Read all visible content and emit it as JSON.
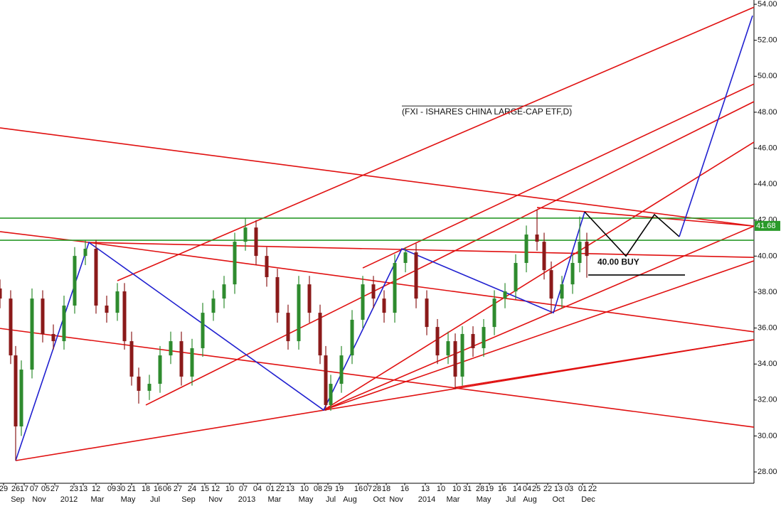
{
  "chart_data": {
    "type": "candlestick",
    "title": "(FXI - ISHARES CHINA LARGE-CAP ETF,D)",
    "up_color": "#2e8b2e",
    "down_color": "#8b1a1a",
    "xlim": [
      0,
      212
    ],
    "ylim": [
      27.37,
      54.24
    ],
    "yticks": [
      {
        "value": 28,
        "label": "28.00"
      },
      {
        "value": 30,
        "label": "30.00"
      },
      {
        "value": 32,
        "label": "32.00"
      },
      {
        "value": 34,
        "label": "34.00"
      },
      {
        "value": 36,
        "label": "36.00"
      },
      {
        "value": 38,
        "label": "38.00"
      },
      {
        "value": 40,
        "label": "40.00"
      },
      {
        "value": 42,
        "label": "42.00"
      },
      {
        "value": 44,
        "label": "44.00"
      },
      {
        "value": 46,
        "label": "46.00"
      },
      {
        "value": 48,
        "label": "48.00"
      },
      {
        "value": 50,
        "label": "50.00"
      },
      {
        "value": 52,
        "label": "52.00"
      },
      {
        "value": 54,
        "label": "54.00"
      }
    ],
    "xticks": [
      {
        "value": 1,
        "label": "29"
      },
      {
        "value": 4.4,
        "label": "26"
      },
      {
        "value": 6.8,
        "label": "17"
      },
      {
        "value": 9.6,
        "label": "07"
      },
      {
        "value": 12.8,
        "label": "05"
      },
      {
        "value": 15.4,
        "label": "27"
      },
      {
        "value": 20.8,
        "label": "23"
      },
      {
        "value": 23.4,
        "label": "13"
      },
      {
        "value": 27,
        "label": "12"
      },
      {
        "value": 31.4,
        "label": "09"
      },
      {
        "value": 34,
        "label": "30"
      },
      {
        "value": 37,
        "label": "21"
      },
      {
        "value": 41,
        "label": "18"
      },
      {
        "value": 44.4,
        "label": "16"
      },
      {
        "value": 47,
        "label": "06"
      },
      {
        "value": 50,
        "label": "27"
      },
      {
        "value": 54,
        "label": "24"
      },
      {
        "value": 57.6,
        "label": "15"
      },
      {
        "value": 60.6,
        "label": "12"
      },
      {
        "value": 64.6,
        "label": "10"
      },
      {
        "value": 68.4,
        "label": "07"
      },
      {
        "value": 72.4,
        "label": "04"
      },
      {
        "value": 76,
        "label": "01"
      },
      {
        "value": 78.8,
        "label": "22"
      },
      {
        "value": 81.6,
        "label": "13"
      },
      {
        "value": 85.6,
        "label": "10"
      },
      {
        "value": 89.4,
        "label": "08"
      },
      {
        "value": 92.2,
        "label": "29"
      },
      {
        "value": 95.4,
        "label": "19"
      },
      {
        "value": 100.8,
        "label": "16"
      },
      {
        "value": 103.4,
        "label": "07"
      },
      {
        "value": 106,
        "label": "28"
      },
      {
        "value": 108.6,
        "label": "18"
      },
      {
        "value": 113.8,
        "label": "16"
      },
      {
        "value": 119.6,
        "label": "13"
      },
      {
        "value": 124,
        "label": "10"
      },
      {
        "value": 128.4,
        "label": "10"
      },
      {
        "value": 131.4,
        "label": "31"
      },
      {
        "value": 135,
        "label": "28"
      },
      {
        "value": 137.6,
        "label": "19"
      },
      {
        "value": 141.2,
        "label": "16"
      },
      {
        "value": 145.4,
        "label": "14"
      },
      {
        "value": 148.2,
        "label": "04"
      },
      {
        "value": 150.8,
        "label": "25"
      },
      {
        "value": 154,
        "label": "22"
      },
      {
        "value": 157,
        "label": "13"
      },
      {
        "value": 160,
        "label": "03"
      },
      {
        "value": 163.8,
        "label": "01"
      },
      {
        "value": 166.6,
        "label": "22"
      }
    ],
    "x_month_labels": [
      {
        "value": 5,
        "label": "Sep"
      },
      {
        "value": 11,
        "label": "Nov"
      },
      {
        "value": 19.4,
        "label": "2012"
      },
      {
        "value": 27.4,
        "label": "Mar"
      },
      {
        "value": 36,
        "label": "May"
      },
      {
        "value": 43.6,
        "label": "Jul"
      },
      {
        "value": 53,
        "label": "Sep"
      },
      {
        "value": 60.6,
        "label": "Nov"
      },
      {
        "value": 69.4,
        "label": "2013"
      },
      {
        "value": 77.2,
        "label": "Mar"
      },
      {
        "value": 86,
        "label": "May"
      },
      {
        "value": 93,
        "label": "Jul"
      },
      {
        "value": 98.4,
        "label": "Aug"
      },
      {
        "value": 106.6,
        "label": "Oct"
      },
      {
        "value": 111.4,
        "label": "Nov"
      },
      {
        "value": 120,
        "label": "2014"
      },
      {
        "value": 127.4,
        "label": "Mar"
      },
      {
        "value": 136,
        "label": "May"
      },
      {
        "value": 143.6,
        "label": "Jul"
      },
      {
        "value": 149,
        "label": "Aug"
      },
      {
        "value": 157,
        "label": "Oct"
      },
      {
        "value": 165.4,
        "label": "Dec"
      }
    ],
    "candles": [
      {
        "x": 0,
        "open": 38.2,
        "high": 38.7,
        "low": 37.1,
        "close": 37.64
      },
      {
        "x": 3,
        "open": 37.64,
        "high": 38.1,
        "low": 34.0,
        "close": 34.48
      },
      {
        "x": 4.4,
        "open": 34.48,
        "high": 35.0,
        "low": 28.63,
        "close": 30.53
      },
      {
        "x": 6,
        "open": 30.53,
        "high": 34.2,
        "low": 30.0,
        "close": 33.69
      },
      {
        "x": 9,
        "open": 33.69,
        "high": 38.2,
        "low": 33.2,
        "close": 37.64
      },
      {
        "x": 12,
        "open": 37.64,
        "high": 38.1,
        "low": 35.2,
        "close": 35.67
      },
      {
        "x": 15,
        "open": 35.67,
        "high": 36.2,
        "low": 34.8,
        "close": 35.27
      },
      {
        "x": 18,
        "open": 35.27,
        "high": 37.8,
        "low": 34.8,
        "close": 37.25
      },
      {
        "x": 21,
        "open": 37.25,
        "high": 40.5,
        "low": 36.8,
        "close": 40.01
      },
      {
        "x": 24,
        "open": 40.01,
        "high": 40.9,
        "low": 39.5,
        "close": 40.41
      },
      {
        "x": 27,
        "open": 40.41,
        "high": 40.9,
        "low": 36.8,
        "close": 37.25
      },
      {
        "x": 30,
        "open": 37.25,
        "high": 37.8,
        "low": 36.3,
        "close": 36.85
      },
      {
        "x": 33,
        "open": 36.85,
        "high": 38.5,
        "low": 36.4,
        "close": 38.04
      },
      {
        "x": 35,
        "open": 38.04,
        "high": 38.5,
        "low": 34.8,
        "close": 35.27
      },
      {
        "x": 37,
        "open": 35.27,
        "high": 35.8,
        "low": 32.8,
        "close": 33.3
      },
      {
        "x": 39,
        "open": 33.3,
        "high": 33.8,
        "low": 31.8,
        "close": 32.51
      },
      {
        "x": 42,
        "open": 32.51,
        "high": 33.4,
        "low": 32.0,
        "close": 32.9
      },
      {
        "x": 45,
        "open": 32.9,
        "high": 35.0,
        "low": 32.4,
        "close": 34.48
      },
      {
        "x": 48,
        "open": 34.48,
        "high": 35.8,
        "low": 34.0,
        "close": 35.27
      },
      {
        "x": 51,
        "open": 35.27,
        "high": 35.8,
        "low": 32.8,
        "close": 33.3
      },
      {
        "x": 54,
        "open": 33.3,
        "high": 35.4,
        "low": 32.8,
        "close": 34.88
      },
      {
        "x": 57,
        "open": 34.88,
        "high": 37.4,
        "low": 34.4,
        "close": 36.85
      },
      {
        "x": 60,
        "open": 36.85,
        "high": 38.1,
        "low": 36.4,
        "close": 37.64
      },
      {
        "x": 63,
        "open": 37.64,
        "high": 38.9,
        "low": 37.1,
        "close": 38.43
      },
      {
        "x": 66,
        "open": 38.43,
        "high": 41.3,
        "low": 37.9,
        "close": 40.8
      },
      {
        "x": 69,
        "open": 40.8,
        "high": 42.1,
        "low": 40.3,
        "close": 41.59
      },
      {
        "x": 72,
        "open": 41.59,
        "high": 42.0,
        "low": 39.5,
        "close": 40.01
      },
      {
        "x": 75,
        "open": 40.01,
        "high": 40.5,
        "low": 38.3,
        "close": 38.83
      },
      {
        "x": 78,
        "open": 38.83,
        "high": 39.3,
        "low": 36.3,
        "close": 36.85
      },
      {
        "x": 81,
        "open": 36.85,
        "high": 37.3,
        "low": 34.8,
        "close": 35.27
      },
      {
        "x": 84,
        "open": 35.27,
        "high": 38.9,
        "low": 34.8,
        "close": 38.43
      },
      {
        "x": 87,
        "open": 38.43,
        "high": 38.9,
        "low": 36.3,
        "close": 36.85
      },
      {
        "x": 90,
        "open": 36.85,
        "high": 37.3,
        "low": 34.0,
        "close": 34.48
      },
      {
        "x": 91.6,
        "open": 34.48,
        "high": 35.0,
        "low": 31.4,
        "close": 31.72
      },
      {
        "x": 93,
        "open": 31.72,
        "high": 33.4,
        "low": 31.4,
        "close": 32.9
      },
      {
        "x": 96,
        "open": 32.9,
        "high": 35.0,
        "low": 32.4,
        "close": 34.48
      },
      {
        "x": 99,
        "open": 34.48,
        "high": 37.0,
        "low": 34.0,
        "close": 36.46
      },
      {
        "x": 102,
        "open": 36.46,
        "high": 38.9,
        "low": 36.0,
        "close": 38.43
      },
      {
        "x": 105,
        "open": 38.43,
        "high": 38.9,
        "low": 37.1,
        "close": 37.64
      },
      {
        "x": 108,
        "open": 37.64,
        "high": 38.1,
        "low": 36.3,
        "close": 36.85
      },
      {
        "x": 111,
        "open": 36.85,
        "high": 40.1,
        "low": 36.3,
        "close": 39.62
      },
      {
        "x": 114,
        "open": 39.62,
        "high": 40.5,
        "low": 39.1,
        "close": 40.21
      },
      {
        "x": 117,
        "open": 40.21,
        "high": 40.7,
        "low": 37.1,
        "close": 37.64
      },
      {
        "x": 120,
        "open": 37.64,
        "high": 38.1,
        "low": 35.6,
        "close": 36.06
      },
      {
        "x": 123,
        "open": 36.06,
        "high": 36.5,
        "low": 34.0,
        "close": 34.48
      },
      {
        "x": 126,
        "open": 34.48,
        "high": 35.8,
        "low": 34.0,
        "close": 35.27
      },
      {
        "x": 128,
        "open": 35.27,
        "high": 35.7,
        "low": 32.6,
        "close": 33.3
      },
      {
        "x": 130,
        "open": 33.3,
        "high": 36.1,
        "low": 32.8,
        "close": 35.67
      },
      {
        "x": 133,
        "open": 35.67,
        "high": 36.1,
        "low": 34.4,
        "close": 34.88
      },
      {
        "x": 136,
        "open": 34.88,
        "high": 36.5,
        "low": 34.4,
        "close": 36.06
      },
      {
        "x": 139,
        "open": 36.06,
        "high": 38.1,
        "low": 35.6,
        "close": 37.64
      },
      {
        "x": 142,
        "open": 37.64,
        "high": 38.5,
        "low": 37.1,
        "close": 38.04
      },
      {
        "x": 145,
        "open": 38.04,
        "high": 40.1,
        "low": 37.6,
        "close": 39.62
      },
      {
        "x": 148,
        "open": 39.62,
        "high": 41.7,
        "low": 39.1,
        "close": 41.2
      },
      {
        "x": 151,
        "open": 41.2,
        "high": 42.6,
        "low": 40.3,
        "close": 40.8
      },
      {
        "x": 153,
        "open": 40.8,
        "high": 41.3,
        "low": 38.7,
        "close": 39.22
      },
      {
        "x": 155,
        "open": 39.22,
        "high": 39.7,
        "low": 36.8,
        "close": 37.64
      },
      {
        "x": 158,
        "open": 37.64,
        "high": 38.9,
        "low": 37.1,
        "close": 38.43
      },
      {
        "x": 161,
        "open": 38.43,
        "high": 40.1,
        "low": 37.9,
        "close": 39.62
      },
      {
        "x": 163,
        "open": 39.62,
        "high": 42.2,
        "low": 39.1,
        "close": 40.8
      },
      {
        "x": 165,
        "open": 40.8,
        "high": 41.3,
        "low": 38.8,
        "close": 40.01
      }
    ],
    "lines": [
      {
        "color": "#e01010",
        "x": [
          0,
          212
        ],
        "y": [
          47.13,
          41.67
        ]
      },
      {
        "color": "#e01010",
        "x": [
          0,
          25
        ],
        "y": [
          41.36,
          40.76
        ]
      },
      {
        "color": "#e01010",
        "x": [
          25,
          212
        ],
        "y": [
          40.76,
          39.93
        ]
      },
      {
        "color": "#e01010",
        "x": [
          25,
          212
        ],
        "y": [
          40.76,
          35.79
        ]
      },
      {
        "color": "#e01010",
        "x": [
          0,
          212
        ],
        "y": [
          35.98,
          30.49
        ]
      },
      {
        "color": "#e01010",
        "x": [
          4.4,
          212
        ],
        "y": [
          28.63,
          35.35
        ]
      },
      {
        "color": "#e01010",
        "x": [
          128,
          212
        ],
        "y": [
          32.7,
          35.35
        ]
      },
      {
        "color": "#e01010",
        "x": [
          91,
          212
        ],
        "y": [
          31.44,
          41.67
        ]
      },
      {
        "color": "#e01010",
        "x": [
          91,
          212
        ],
        "y": [
          31.44,
          39.74
        ]
      },
      {
        "color": "#e01010",
        "x": [
          91,
          212
        ],
        "y": [
          31.44,
          46.34
        ]
      },
      {
        "color": "#e01010",
        "x": [
          33,
          212
        ],
        "y": [
          38.63,
          53.84
        ]
      },
      {
        "color": "#e01010",
        "x": [
          102,
          212
        ],
        "y": [
          39.34,
          49.57
        ]
      },
      {
        "color": "#e01010",
        "x": [
          41,
          212
        ],
        "y": [
          31.72,
          48.59
        ]
      },
      {
        "color": "#e01010",
        "x": [
          151,
          212
        ],
        "y": [
          42.7,
          41.67
        ]
      },
      {
        "color": "#2a9a2a",
        "x": [
          0,
          212
        ],
        "y": [
          42.11,
          42.11
        ]
      },
      {
        "color": "#2a9a2a",
        "x": [
          0,
          212
        ],
        "y": [
          40.88,
          40.88
        ]
      },
      {
        "color": "#2020d0",
        "x": [
          4.4,
          25,
          91,
          113,
          155.6,
          164.4
        ],
        "y": [
          28.63,
          40.76,
          31.44,
          40.41,
          36.85,
          42.46
        ]
      },
      {
        "color": "#000000",
        "x": [
          164.4,
          176,
          184,
          191
        ],
        "y": [
          42.46,
          40.0,
          42.31,
          41.08
        ]
      },
      {
        "color": "#2020d0",
        "x": [
          191,
          211.6
        ],
        "y": [
          41.08,
          53.37
        ]
      },
      {
        "color": "#000000",
        "x": [
          165.4,
          192.6
        ],
        "y": [
          38.95,
          38.95
        ]
      }
    ],
    "buy_label": {
      "text": "40.00 BUY",
      "x": 168,
      "y": 39.65
    },
    "last_price": {
      "value": 41.68,
      "label": "41.68",
      "color": "#2a9a2a"
    }
  }
}
